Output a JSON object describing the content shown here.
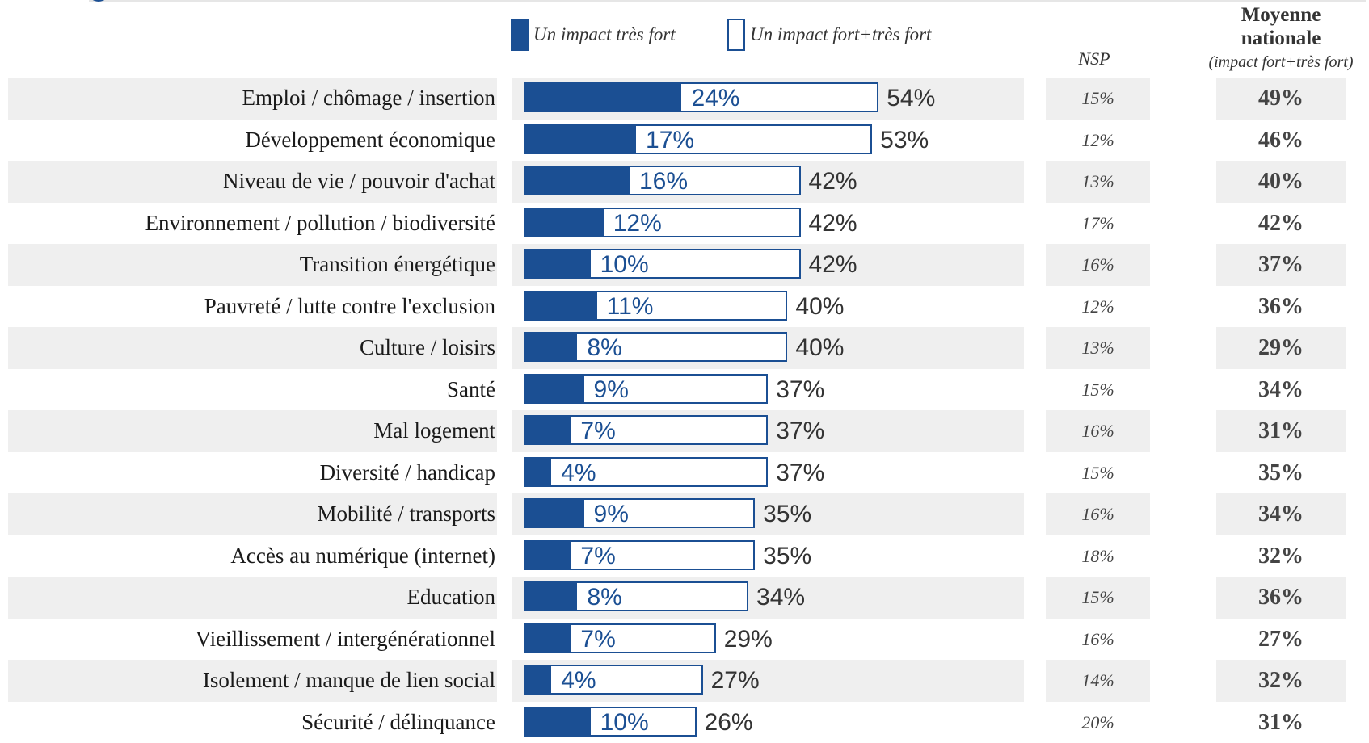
{
  "legend": {
    "solid_label": "Un impact très fort",
    "outline_label": "Un impact fort+très fort"
  },
  "headers": {
    "nsp": "NSP",
    "moyenne_line1": "Moyenne",
    "moyenne_line2": "nationale",
    "moyenne_sub": "(impact fort+très fort)"
  },
  "colors": {
    "bar": "#1b4f93",
    "row_band": "#efefef"
  },
  "chart_data": {
    "type": "bar",
    "orientation": "horizontal",
    "xlim": [
      0,
      100
    ],
    "series": [
      {
        "name": "Un impact très fort",
        "values": [
          24,
          17,
          16,
          12,
          10,
          11,
          8,
          9,
          7,
          4,
          9,
          7,
          8,
          7,
          4,
          10
        ]
      },
      {
        "name": "Un impact fort+très fort",
        "values": [
          54,
          53,
          42,
          42,
          42,
          40,
          40,
          37,
          37,
          37,
          35,
          35,
          34,
          29,
          27,
          26
        ]
      }
    ],
    "rows": [
      {
        "label": "Emploi / chômage / insertion",
        "tres_fort": 24,
        "fort_tres_fort": 54,
        "nsp": "15%",
        "moyenne": "49%",
        "tres_fort_text": "24%",
        "fort_text": "54%"
      },
      {
        "label": "Développement économique",
        "tres_fort": 17,
        "fort_tres_fort": 53,
        "nsp": "12%",
        "moyenne": "46%",
        "tres_fort_text": "17%",
        "fort_text": "53%"
      },
      {
        "label": "Niveau de vie / pouvoir d'achat",
        "tres_fort": 16,
        "fort_tres_fort": 42,
        "nsp": "13%",
        "moyenne": "40%",
        "tres_fort_text": "16%",
        "fort_text": "42%"
      },
      {
        "label": "Environnement / pollution / biodiversité",
        "tres_fort": 12,
        "fort_tres_fort": 42,
        "nsp": "17%",
        "moyenne": "42%",
        "tres_fort_text": "12%",
        "fort_text": "42%"
      },
      {
        "label": "Transition énergétique",
        "tres_fort": 10,
        "fort_tres_fort": 42,
        "nsp": "16%",
        "moyenne": "37%",
        "tres_fort_text": "10%",
        "fort_text": "42%"
      },
      {
        "label": "Pauvreté / lutte contre l'exclusion",
        "tres_fort": 11,
        "fort_tres_fort": 40,
        "nsp": "12%",
        "moyenne": "36%",
        "tres_fort_text": "11%",
        "fort_text": "40%"
      },
      {
        "label": "Culture / loisirs",
        "tres_fort": 8,
        "fort_tres_fort": 40,
        "nsp": "13%",
        "moyenne": "29%",
        "tres_fort_text": "8%",
        "fort_text": "40%"
      },
      {
        "label": "Santé",
        "tres_fort": 9,
        "fort_tres_fort": 37,
        "nsp": "15%",
        "moyenne": "34%",
        "tres_fort_text": "9%",
        "fort_text": "37%"
      },
      {
        "label": "Mal logement",
        "tres_fort": 7,
        "fort_tres_fort": 37,
        "nsp": "16%",
        "moyenne": "31%",
        "tres_fort_text": "7%",
        "fort_text": "37%"
      },
      {
        "label": "Diversité / handicap",
        "tres_fort": 4,
        "fort_tres_fort": 37,
        "nsp": "15%",
        "moyenne": "35%",
        "tres_fort_text": "4%",
        "fort_text": "37%"
      },
      {
        "label": "Mobilité / transports",
        "tres_fort": 9,
        "fort_tres_fort": 35,
        "nsp": "16%",
        "moyenne": "34%",
        "tres_fort_text": "9%",
        "fort_text": "35%"
      },
      {
        "label": "Accès au numérique (internet)",
        "tres_fort": 7,
        "fort_tres_fort": 35,
        "nsp": "18%",
        "moyenne": "32%",
        "tres_fort_text": "7%",
        "fort_text": "35%"
      },
      {
        "label": "Education",
        "tres_fort": 8,
        "fort_tres_fort": 34,
        "nsp": "15%",
        "moyenne": "36%",
        "tres_fort_text": "8%",
        "fort_text": "34%"
      },
      {
        "label": "Vieillissement / intergénérationnel",
        "tres_fort": 7,
        "fort_tres_fort": 29,
        "nsp": "16%",
        "moyenne": "27%",
        "tres_fort_text": "7%",
        "fort_text": "29%"
      },
      {
        "label": "Isolement / manque de lien social",
        "tres_fort": 4,
        "fort_tres_fort": 27,
        "nsp": "14%",
        "moyenne": "32%",
        "tres_fort_text": "4%",
        "fort_text": "27%"
      },
      {
        "label": "Sécurité / délinquance",
        "tres_fort": 10,
        "fort_tres_fort": 26,
        "nsp": "20%",
        "moyenne": "31%",
        "tres_fort_text": "10%",
        "fort_text": "26%"
      }
    ]
  }
}
